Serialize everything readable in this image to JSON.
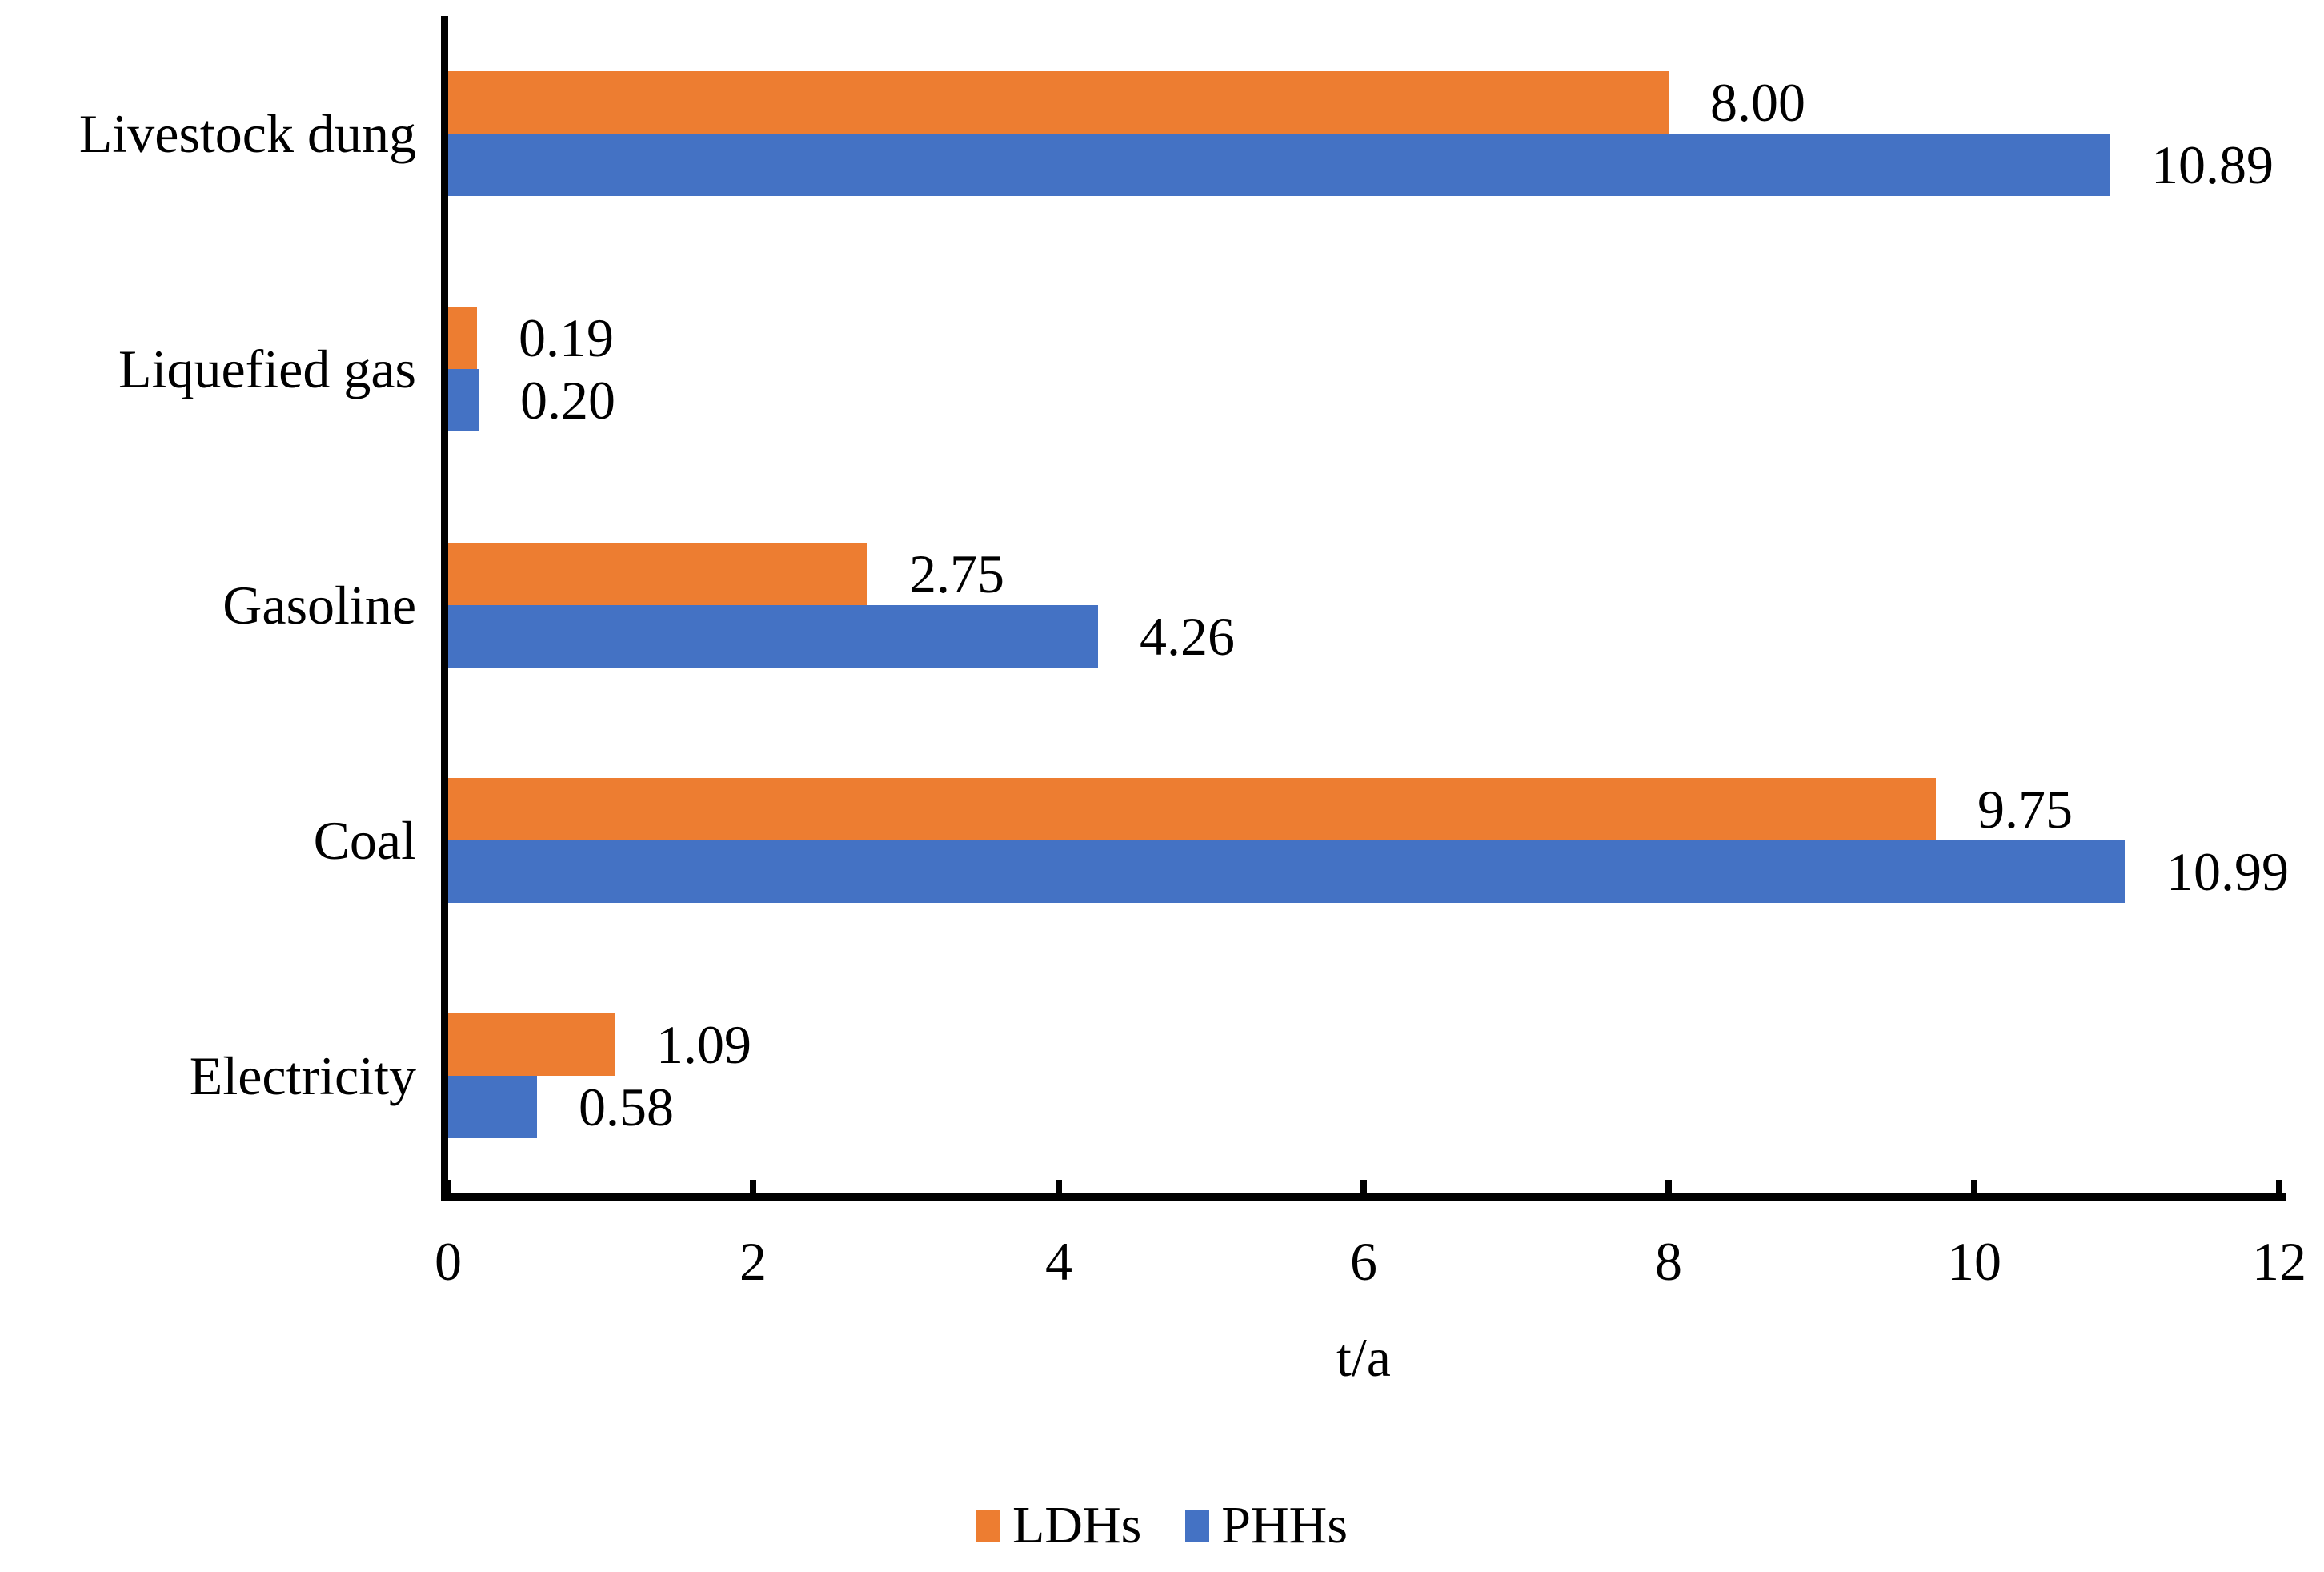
{
  "chart_data": {
    "type": "bar",
    "orientation": "horizontal",
    "title": "",
    "categories": [
      "Livestock dung",
      "Liquefied gas",
      "Gasoline",
      "Coal",
      "Electricity"
    ],
    "series": [
      {
        "name": "LDHs",
        "color": "#ED7D31",
        "values": [
          8.0,
          0.19,
          2.75,
          9.75,
          1.09
        ],
        "labels": [
          "8.00",
          "0.19",
          "2.75",
          "9.75",
          "1.09"
        ]
      },
      {
        "name": "PHHs",
        "color": "#4472C4",
        "values": [
          10.89,
          0.2,
          4.26,
          10.99,
          0.58
        ],
        "labels": [
          "10.89",
          "0.20",
          "4.26",
          "10.99",
          "0.58"
        ]
      }
    ],
    "xlabel": "t/a",
    "xlim": [
      0,
      12
    ],
    "xticks": [
      "0",
      "2",
      "4",
      "6",
      "8",
      "10",
      "12"
    ],
    "grid": false,
    "legend_position": "bottom",
    "axis_color": "#000000",
    "text_color": "#000000",
    "background_color": "#FFFFFF"
  }
}
